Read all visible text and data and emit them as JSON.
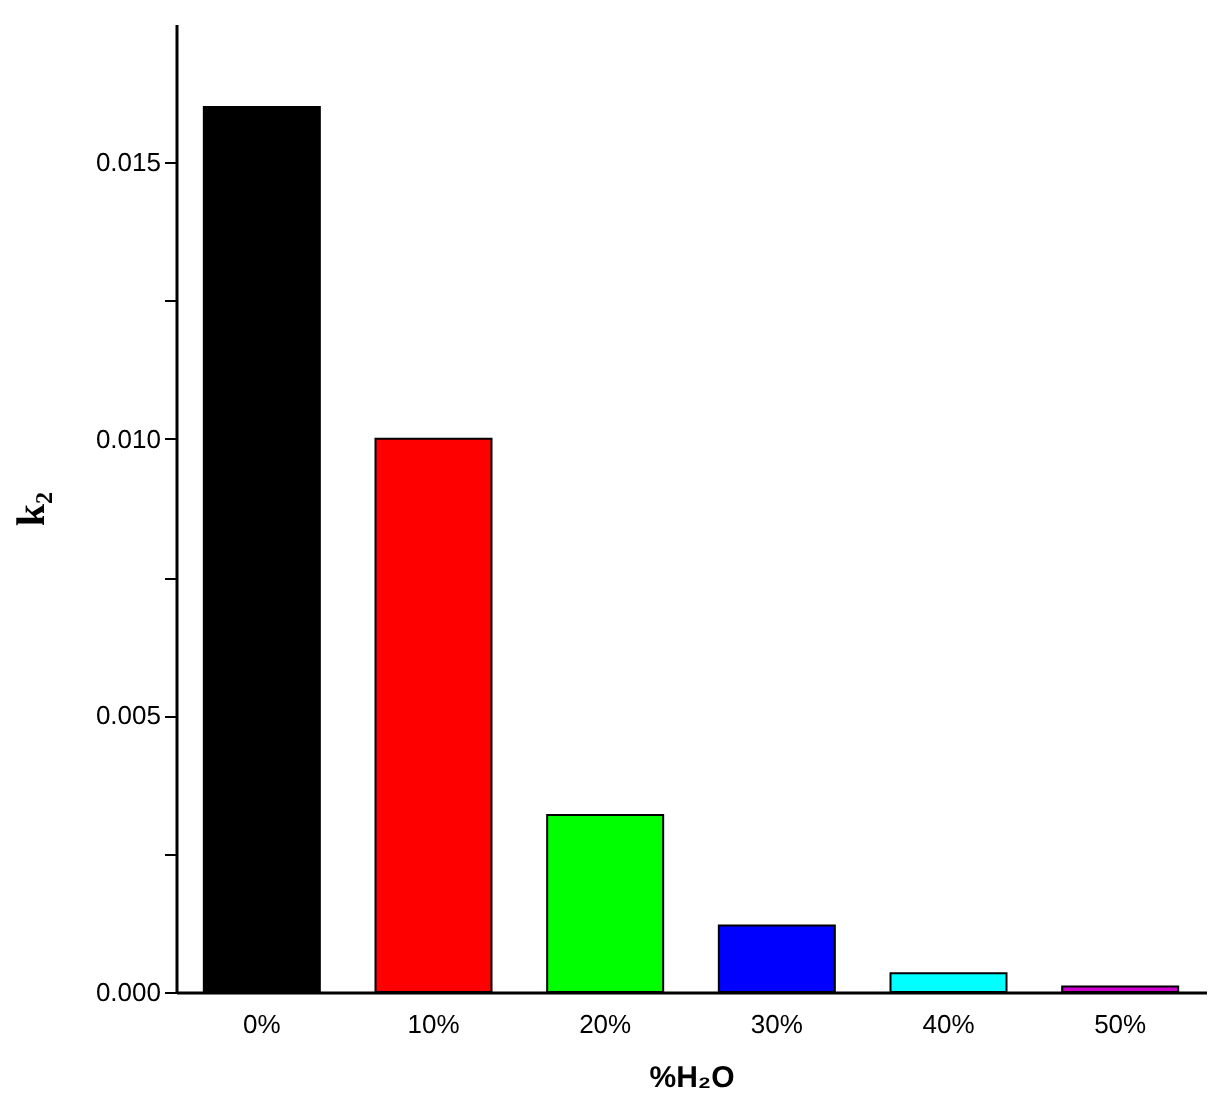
{
  "chart_data": {
    "type": "bar",
    "xlabel": "%H₂O",
    "ylabel": "k₂",
    "categories": [
      "0%",
      "10%",
      "20%",
      "30%",
      "40%",
      "50%"
    ],
    "values": [
      0.016,
      0.01,
      0.0032,
      0.0012,
      0.00034,
      0.0001
    ],
    "colors": [
      "#000000",
      "#ff0000",
      "#00ff00",
      "#0000ff",
      "#00ffff",
      "#cc00cc"
    ],
    "ylim": [
      0,
      0.0175
    ],
    "yticks": [
      {
        "value": 0,
        "label": "0.000"
      },
      {
        "value": 0.0025,
        "label": null
      },
      {
        "value": 0.005,
        "label": "0.005"
      },
      {
        "value": 0.0075,
        "label": null
      },
      {
        "value": 0.01,
        "label": "0.010"
      },
      {
        "value": 0.0125,
        "label": null
      },
      {
        "value": 0.015,
        "label": "0.015"
      }
    ],
    "grid": false
  }
}
